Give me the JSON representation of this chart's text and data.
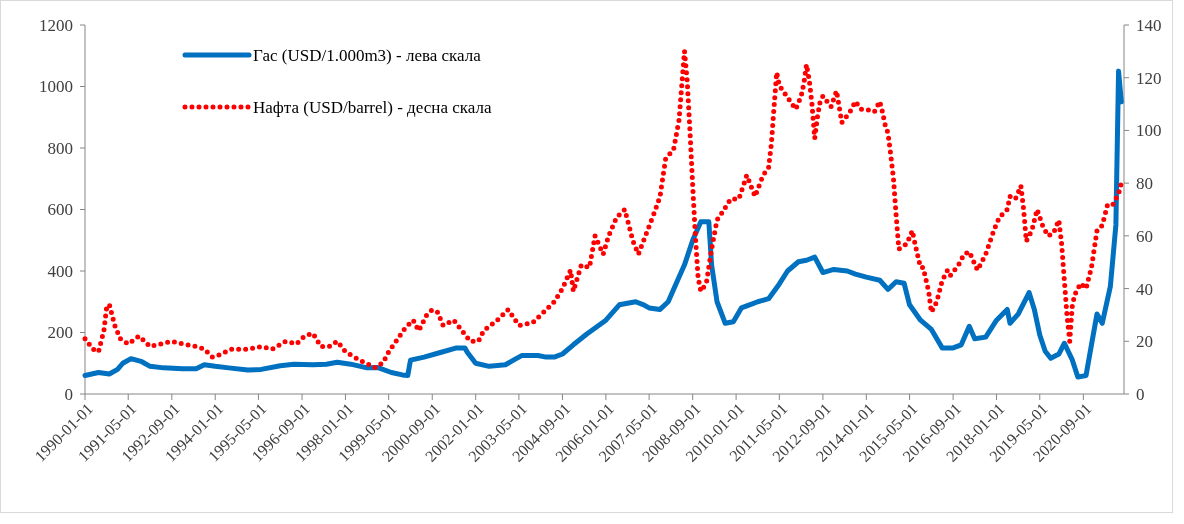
{
  "chart_data": {
    "type": "line",
    "xlim": [
      "1990-01-01",
      "2021-12-01"
    ],
    "xticks": [
      "1990-01-01",
      "1991-05-01",
      "1992-09-01",
      "1994-01-01",
      "1995-05-01",
      "1996-09-01",
      "1998-01-01",
      "1999-05-01",
      "2000-09-01",
      "2002-01-01",
      "2003-05-01",
      "2004-09-01",
      "2006-01-01",
      "2007-05-01",
      "2008-09-01",
      "2010-01-01",
      "2011-05-01",
      "2012-09-01",
      "2014-01-01",
      "2015-05-01",
      "2016-09-01",
      "2018-01-01",
      "2019-05-01",
      "2020-09-01"
    ],
    "ylim": [
      0,
      1200
    ],
    "yticks": [
      0,
      200,
      400,
      600,
      800,
      1000,
      1200
    ],
    "y2lim": [
      0,
      140
    ],
    "y2ticks": [
      0,
      20,
      40,
      60,
      80,
      100,
      120,
      140
    ],
    "grid": false,
    "legend": "top left",
    "series": [
      {
        "name": "Гас (USD/1.000m3) - лева скала",
        "color": "#0070c0",
        "line_style": "solid",
        "axis": "y",
        "x": [
          "1990-01",
          "1990-06",
          "1990-10",
          "1991-01",
          "1991-03",
          "1991-06",
          "1991-10",
          "1992-01",
          "1992-06",
          "1993-01",
          "1993-06",
          "1993-09",
          "1994-01",
          "1994-06",
          "1995-01",
          "1995-06",
          "1996-01",
          "1996-06",
          "1997-01",
          "1997-06",
          "1997-10",
          "1998-03",
          "1998-09",
          "1999-01",
          "1999-06",
          "1999-10",
          "1999-12",
          "2000-01",
          "2000-06",
          "2000-12",
          "2001-06",
          "2001-09",
          "2001-10",
          "2002-01",
          "2002-06",
          "2002-12",
          "2003-03",
          "2003-06",
          "2003-12",
          "2004-03",
          "2004-06",
          "2004-09",
          "2005-01",
          "2005-06",
          "2006-01",
          "2006-06",
          "2006-12",
          "2007-03",
          "2007-05",
          "2007-09",
          "2007-12",
          "2008-03",
          "2008-06",
          "2008-09",
          "2008-12",
          "2009-03",
          "2009-04",
          "2009-06",
          "2009-09",
          "2009-12",
          "2010-03",
          "2010-06",
          "2010-09",
          "2011-01",
          "2011-05",
          "2011-08",
          "2011-12",
          "2012-03",
          "2012-06",
          "2012-09",
          "2013-01",
          "2013-06",
          "2013-09",
          "2014-01",
          "2014-06",
          "2014-09",
          "2014-12",
          "2015-03",
          "2015-05",
          "2015-09",
          "2016-01",
          "2016-05",
          "2016-09",
          "2016-12",
          "2017-03",
          "2017-05",
          "2017-09",
          "2018-01",
          "2018-05",
          "2018-06",
          "2018-09",
          "2019-01",
          "2019-03",
          "2019-05",
          "2019-07",
          "2019-09",
          "2019-12",
          "2020-02",
          "2020-05",
          "2020-07",
          "2020-10",
          "2020-12",
          "2021-02",
          "2021-04",
          "2021-07",
          "2021-09",
          "2021-10",
          "2021-11"
        ],
        "values": [
          60,
          70,
          65,
          80,
          100,
          115,
          105,
          90,
          85,
          82,
          82,
          95,
          90,
          85,
          78,
          80,
          92,
          97,
          95,
          97,
          103,
          97,
          85,
          86,
          70,
          62,
          60,
          110,
          120,
          135,
          150,
          150,
          135,
          100,
          90,
          95,
          110,
          125,
          125,
          120,
          120,
          130,
          160,
          195,
          240,
          290,
          300,
          290,
          280,
          275,
          300,
          360,
          420,
          500,
          560,
          560,
          420,
          300,
          230,
          235,
          280,
          290,
          300,
          310,
          358,
          400,
          430,
          435,
          445,
          395,
          405,
          400,
          390,
          380,
          370,
          340,
          365,
          360,
          290,
          240,
          210,
          150,
          150,
          160,
          220,
          180,
          185,
          240,
          275,
          230,
          260,
          330,
          275,
          192,
          139,
          116,
          130,
          165,
          110,
          55,
          60,
          160,
          260,
          230,
          350,
          550,
          1050,
          950
        ]
      },
      {
        "name": "Нафта  (USD/barrel) - десна скала",
        "color": "#ff0000",
        "line_style": "dotted",
        "axis": "y2",
        "x": [
          "1990-01",
          "1990-04",
          "1990-06",
          "1990-08",
          "1990-09",
          "1990-10",
          "1990-11",
          "1990-12",
          "1991-02",
          "1991-05",
          "1991-09",
          "1992-01",
          "1992-05",
          "1992-09",
          "1993-01",
          "1993-06",
          "1993-09",
          "1993-12",
          "1994-03",
          "1994-07",
          "1995-01",
          "1995-06",
          "1995-10",
          "1996-03",
          "1996-07",
          "1996-10",
          "1997-01",
          "1997-04",
          "1997-07",
          "1997-10",
          "1998-01",
          "1998-06",
          "1998-12",
          "1999-03",
          "1999-05",
          "1999-07",
          "1999-09",
          "1999-11",
          "2000-02",
          "2000-04",
          "2000-07",
          "2000-09",
          "2000-11",
          "2001-01",
          "2001-05",
          "2001-08",
          "2001-11",
          "2002-02",
          "2002-04",
          "2002-09",
          "2003-01",
          "2003-05",
          "2003-10",
          "2004-02",
          "2004-06",
          "2004-09",
          "2004-12",
          "2005-01",
          "2005-04",
          "2005-07",
          "2005-09",
          "2005-12",
          "2006-02",
          "2006-05",
          "2006-08",
          "2006-11",
          "2007-01",
          "2007-04",
          "2007-07",
          "2007-09",
          "2007-11",
          "2008-02",
          "2008-04",
          "2008-05",
          "2008-06",
          "2008-07",
          "2008-08",
          "2008-09",
          "2008-10",
          "2008-11",
          "2008-12",
          "2009-02",
          "2009-04",
          "2009-06",
          "2009-08",
          "2009-11",
          "2010-02",
          "2010-05",
          "2010-08",
          "2010-11",
          "2011-01",
          "2011-02",
          "2011-03",
          "2011-04",
          "2011-05",
          "2011-07",
          "2011-09",
          "2011-11",
          "2012-01",
          "2012-02",
          "2012-03",
          "2012-04",
          "2012-05",
          "2012-06",
          "2012-07",
          "2012-08",
          "2012-09",
          "2012-12",
          "2013-02",
          "2013-04",
          "2013-07",
          "2013-09",
          "2013-11",
          "2014-01",
          "2014-04",
          "2014-06",
          "2014-07",
          "2014-08",
          "2014-09",
          "2014-10",
          "2014-11",
          "2014-12",
          "2015-01",
          "2015-04",
          "2015-06",
          "2015-07",
          "2015-09",
          "2015-10",
          "2015-12",
          "2016-01",
          "2016-03",
          "2016-05",
          "2016-07",
          "2016-08",
          "2016-11",
          "2017-01",
          "2017-03",
          "2017-06",
          "2017-09",
          "2017-12",
          "2018-02",
          "2018-05",
          "2018-06",
          "2018-08",
          "2018-10",
          "2018-11",
          "2018-12",
          "2019-02",
          "2019-04",
          "2019-06",
          "2019-08",
          "2019-10",
          "2019-12",
          "2020-01",
          "2020-02",
          "2020-03",
          "2020-04",
          "2020-05",
          "2020-06",
          "2020-08",
          "2020-10",
          "2020-12",
          "2021-02",
          "2021-04",
          "2021-06",
          "2021-08",
          "2021-10",
          "2021-11"
        ],
        "values": [
          21,
          17,
          16,
          24,
          33,
          34,
          30,
          26,
          21,
          19,
          22,
          18,
          19,
          20,
          19,
          18,
          17,
          14,
          15,
          17,
          17,
          18,
          17,
          20,
          19,
          22,
          23,
          18,
          18,
          20,
          16,
          13,
          10,
          12,
          16,
          19,
          22,
          25,
          28,
          24,
          30,
          32,
          31,
          26,
          28,
          24,
          20,
          20,
          24,
          28,
          32,
          26,
          27,
          31,
          35,
          40,
          47,
          39,
          49,
          48,
          60,
          53,
          60,
          67,
          70,
          58,
          53,
          61,
          69,
          75,
          89,
          93,
          104,
          117,
          130,
          119,
          100,
          79,
          60,
          44,
          39,
          42,
          55,
          66,
          69,
          74,
          74,
          83,
          75,
          83,
          86,
          95,
          108,
          122,
          117,
          114,
          111,
          108,
          113,
          118,
          125,
          119,
          110,
          97,
          105,
          111,
          113,
          109,
          115,
          103,
          107,
          111,
          108,
          108,
          107,
          111,
          107,
          102,
          99,
          91,
          82,
          68,
          55,
          57,
          62,
          57,
          48,
          48,
          39,
          31,
          35,
          43,
          47,
          45,
          49,
          53,
          54,
          47,
          53,
          62,
          67,
          70,
          75,
          74,
          79,
          70,
          58,
          62,
          70,
          64,
          60,
          61,
          66,
          57,
          43,
          30,
          20,
          34,
          38,
          42,
          40,
          48,
          62,
          64,
          72,
          72,
          76,
          80
        ]
      }
    ]
  }
}
